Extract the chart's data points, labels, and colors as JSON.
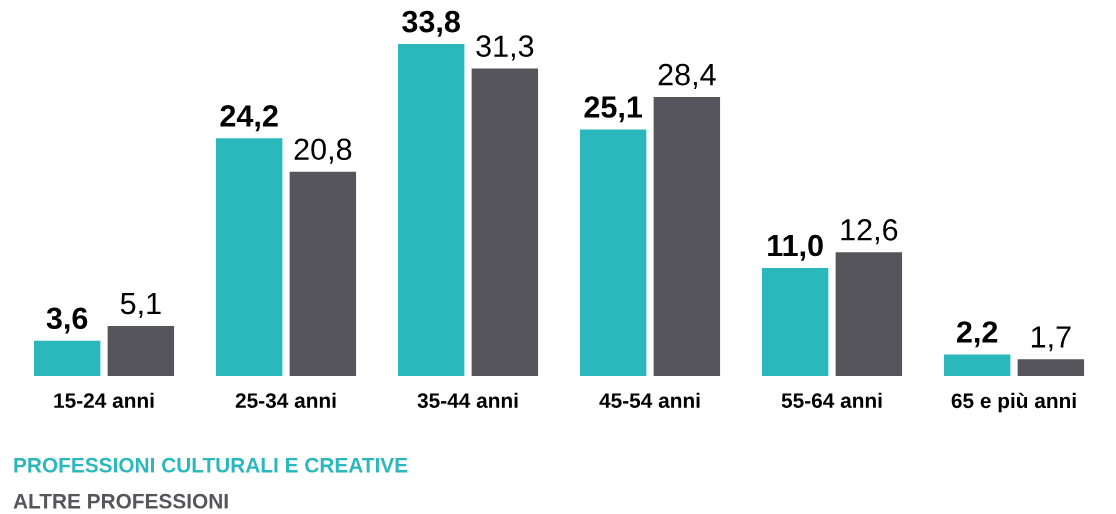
{
  "chart_data": {
    "type": "bar",
    "categories": [
      "15-24 anni",
      "25-34 anni",
      "35-44 anni",
      "45-54 anni",
      "55-64 anni",
      "65 e più anni"
    ],
    "series": [
      {
        "name": "PROFESSIONI CULTURALI E CREATIVE",
        "color": "#2bb8bd",
        "values": [
          3.6,
          24.2,
          33.8,
          25.1,
          11.0,
          2.2
        ],
        "value_labels": [
          "3,6",
          "24,2",
          "33,8",
          "25,1",
          "11,0",
          "2,2"
        ]
      },
      {
        "name": "ALTRE PROFESSIONI",
        "color": "#55555b",
        "values": [
          5.1,
          20.8,
          31.3,
          28.4,
          12.6,
          1.7
        ],
        "value_labels": [
          "5,1",
          "20,8",
          "31,3",
          "28,4",
          "12,6",
          "1,7"
        ]
      }
    ],
    "tick_labels": "x",
    "grid": false,
    "legend": "bottom"
  }
}
